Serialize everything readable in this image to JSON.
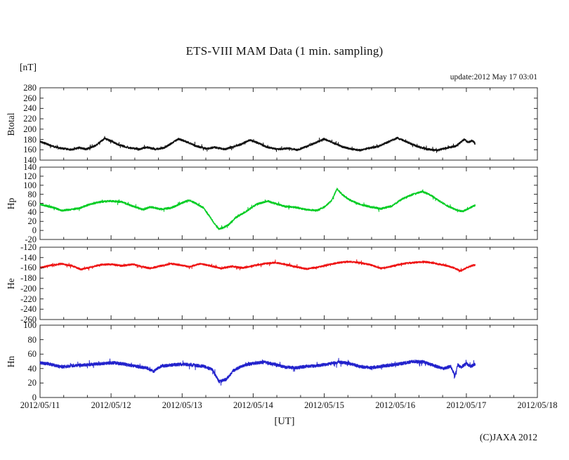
{
  "page": {
    "title": "ETS-VIII MAM Data (1 min. sampling)",
    "unit_label": "[nT]",
    "update_label": "update:2012 May 17 03:01",
    "xaxis_label": "[UT]",
    "copyright": "(C)JAXA 2012"
  },
  "chart_data": {
    "type": "line",
    "title": "ETS-VIII MAM Data (1 min. sampling)",
    "xlabel": "[UT]",
    "update_text": "update:2012 May 17 03:01",
    "sampling_minutes": 1,
    "x_tick_labels": [
      "2012/05/11",
      "2012/05/12",
      "2012/05/13",
      "2012/05/14",
      "2012/05/15",
      "2012/05/16",
      "2012/05/17",
      "2012/05/18"
    ],
    "x_range_days": [
      0,
      7
    ],
    "x_minor_tick_hours": 8,
    "data_end_day": 6.126,
    "grid": false,
    "legend": "none",
    "frame_color": "#2b2b2b",
    "panels": [
      {
        "name": "Btotal",
        "color": "#111111",
        "ylim": [
          140,
          280
        ],
        "ytick_labels": [
          "280",
          "260",
          "240",
          "220",
          "200",
          "180",
          "160",
          "140"
        ],
        "noise_amplitude": 2.0,
        "anchors": [
          [
            0,
            176
          ],
          [
            0.1,
            171
          ],
          [
            0.2,
            166
          ],
          [
            0.3,
            163
          ],
          [
            0.45,
            160
          ],
          [
            0.55,
            164
          ],
          [
            0.65,
            161
          ],
          [
            0.78,
            168
          ],
          [
            0.91,
            182
          ],
          [
            1.0,
            177
          ],
          [
            1.1,
            170
          ],
          [
            1.25,
            164
          ],
          [
            1.4,
            161
          ],
          [
            1.5,
            165
          ],
          [
            1.62,
            161
          ],
          [
            1.75,
            164
          ],
          [
            1.95,
            181
          ],
          [
            2.05,
            176
          ],
          [
            2.2,
            167
          ],
          [
            2.35,
            162
          ],
          [
            2.45,
            165
          ],
          [
            2.6,
            161
          ],
          [
            2.7,
            165
          ],
          [
            2.82,
            170
          ],
          [
            2.95,
            179
          ],
          [
            3.05,
            174
          ],
          [
            3.2,
            165
          ],
          [
            3.35,
            161
          ],
          [
            3.5,
            163
          ],
          [
            3.62,
            160
          ],
          [
            3.75,
            166
          ],
          [
            4.0,
            181
          ],
          [
            4.1,
            175
          ],
          [
            4.25,
            166
          ],
          [
            4.4,
            161
          ],
          [
            4.5,
            159
          ],
          [
            4.62,
            163
          ],
          [
            4.75,
            166
          ],
          [
            5.03,
            183
          ],
          [
            5.15,
            176
          ],
          [
            5.3,
            167
          ],
          [
            5.45,
            161
          ],
          [
            5.6,
            159
          ],
          [
            5.7,
            163
          ],
          [
            5.85,
            167
          ],
          [
            5.97,
            180
          ],
          [
            6.03,
            174
          ],
          [
            6.08,
            178
          ],
          [
            6.13,
            172
          ]
        ]
      },
      {
        "name": "Hp",
        "color": "#00cc22",
        "ylim": [
          -20,
          140
        ],
        "ytick_labels": [
          "140",
          "120",
          "100",
          "80",
          "60",
          "40",
          "20",
          "0",
          "-20"
        ],
        "noise_amplitude": 2.2,
        "anchors": [
          [
            0,
            58
          ],
          [
            0.1,
            54
          ],
          [
            0.2,
            50
          ],
          [
            0.3,
            44
          ],
          [
            0.42,
            46
          ],
          [
            0.55,
            49
          ],
          [
            0.7,
            58
          ],
          [
            0.85,
            63
          ],
          [
            1.0,
            65
          ],
          [
            1.15,
            63
          ],
          [
            1.3,
            54
          ],
          [
            1.45,
            46
          ],
          [
            1.55,
            52
          ],
          [
            1.7,
            47
          ],
          [
            1.85,
            50
          ],
          [
            2.0,
            61
          ],
          [
            2.1,
            67
          ],
          [
            2.2,
            59
          ],
          [
            2.3,
            50
          ],
          [
            2.4,
            28
          ],
          [
            2.47,
            12
          ],
          [
            2.52,
            3
          ],
          [
            2.58,
            6
          ],
          [
            2.65,
            12
          ],
          [
            2.75,
            28
          ],
          [
            2.9,
            42
          ],
          [
            3.05,
            58
          ],
          [
            3.2,
            65
          ],
          [
            3.3,
            60
          ],
          [
            3.45,
            53
          ],
          [
            3.6,
            51
          ],
          [
            3.75,
            46
          ],
          [
            3.9,
            44
          ],
          [
            4.0,
            52
          ],
          [
            4.1,
            65
          ],
          [
            4.18,
            92
          ],
          [
            4.25,
            80
          ],
          [
            4.35,
            68
          ],
          [
            4.5,
            58
          ],
          [
            4.65,
            52
          ],
          [
            4.8,
            48
          ],
          [
            4.95,
            54
          ],
          [
            5.1,
            70
          ],
          [
            5.25,
            80
          ],
          [
            5.38,
            86
          ],
          [
            5.5,
            78
          ],
          [
            5.62,
            65
          ],
          [
            5.75,
            53
          ],
          [
            5.85,
            46
          ],
          [
            5.95,
            42
          ],
          [
            6.05,
            50
          ],
          [
            6.13,
            56
          ]
        ]
      },
      {
        "name": "He",
        "color": "#ee1111",
        "ylim": [
          -260,
          -120
        ],
        "ytick_labels": [
          "-120",
          "-140",
          "-160",
          "-180",
          "-200",
          "-220",
          "-240",
          "-260"
        ],
        "noise_amplitude": 1.8,
        "anchors": [
          [
            0,
            -160
          ],
          [
            0.15,
            -155
          ],
          [
            0.3,
            -152
          ],
          [
            0.45,
            -156
          ],
          [
            0.58,
            -163
          ],
          [
            0.7,
            -159
          ],
          [
            0.85,
            -154
          ],
          [
            1.0,
            -153
          ],
          [
            1.15,
            -156
          ],
          [
            1.3,
            -153
          ],
          [
            1.45,
            -158
          ],
          [
            1.55,
            -161
          ],
          [
            1.7,
            -156
          ],
          [
            1.85,
            -152
          ],
          [
            2.0,
            -155
          ],
          [
            2.1,
            -158
          ],
          [
            2.25,
            -152
          ],
          [
            2.4,
            -156
          ],
          [
            2.55,
            -161
          ],
          [
            2.7,
            -157
          ],
          [
            2.85,
            -160
          ],
          [
            3.0,
            -156
          ],
          [
            3.15,
            -152
          ],
          [
            3.3,
            -150
          ],
          [
            3.45,
            -153
          ],
          [
            3.6,
            -158
          ],
          [
            3.75,
            -162
          ],
          [
            3.9,
            -159
          ],
          [
            4.05,
            -154
          ],
          [
            4.2,
            -150
          ],
          [
            4.35,
            -148
          ],
          [
            4.5,
            -150
          ],
          [
            4.65,
            -154
          ],
          [
            4.8,
            -161
          ],
          [
            4.95,
            -157
          ],
          [
            5.1,
            -152
          ],
          [
            5.25,
            -150
          ],
          [
            5.4,
            -148
          ],
          [
            5.55,
            -151
          ],
          [
            5.7,
            -155
          ],
          [
            5.82,
            -160
          ],
          [
            5.92,
            -166
          ],
          [
            6.0,
            -160
          ],
          [
            6.07,
            -156
          ],
          [
            6.13,
            -154
          ]
        ]
      },
      {
        "name": "Hn",
        "color": "#2222cc",
        "ylim": [
          0,
          100
        ],
        "ytick_labels": [
          "100",
          "80",
          "60",
          "40",
          "20",
          "0"
        ],
        "noise_amplitude": 2.2,
        "anchors": [
          [
            0,
            48
          ],
          [
            0.15,
            46
          ],
          [
            0.3,
            42
          ],
          [
            0.45,
            44
          ],
          [
            0.6,
            45
          ],
          [
            0.75,
            46
          ],
          [
            0.9,
            47
          ],
          [
            1.05,
            48
          ],
          [
            1.2,
            46
          ],
          [
            1.35,
            43
          ],
          [
            1.5,
            41
          ],
          [
            1.6,
            36
          ],
          [
            1.7,
            43
          ],
          [
            1.85,
            45
          ],
          [
            2.0,
            46
          ],
          [
            2.15,
            45
          ],
          [
            2.3,
            43
          ],
          [
            2.42,
            39
          ],
          [
            2.52,
            22
          ],
          [
            2.62,
            25
          ],
          [
            2.72,
            37
          ],
          [
            2.85,
            44
          ],
          [
            3.0,
            47
          ],
          [
            3.15,
            49
          ],
          [
            3.3,
            46
          ],
          [
            3.45,
            42
          ],
          [
            3.6,
            41
          ],
          [
            3.75,
            43
          ],
          [
            3.9,
            44
          ],
          [
            4.05,
            46
          ],
          [
            4.2,
            49
          ],
          [
            4.35,
            47
          ],
          [
            4.5,
            43
          ],
          [
            4.65,
            41
          ],
          [
            4.8,
            43
          ],
          [
            4.95,
            45
          ],
          [
            5.1,
            47
          ],
          [
            5.25,
            50
          ],
          [
            5.4,
            49
          ],
          [
            5.55,
            44
          ],
          [
            5.68,
            40
          ],
          [
            5.78,
            43
          ],
          [
            5.84,
            30
          ],
          [
            5.88,
            45
          ],
          [
            5.93,
            42
          ],
          [
            6.0,
            47
          ],
          [
            6.06,
            43
          ],
          [
            6.13,
            46
          ]
        ]
      }
    ]
  }
}
